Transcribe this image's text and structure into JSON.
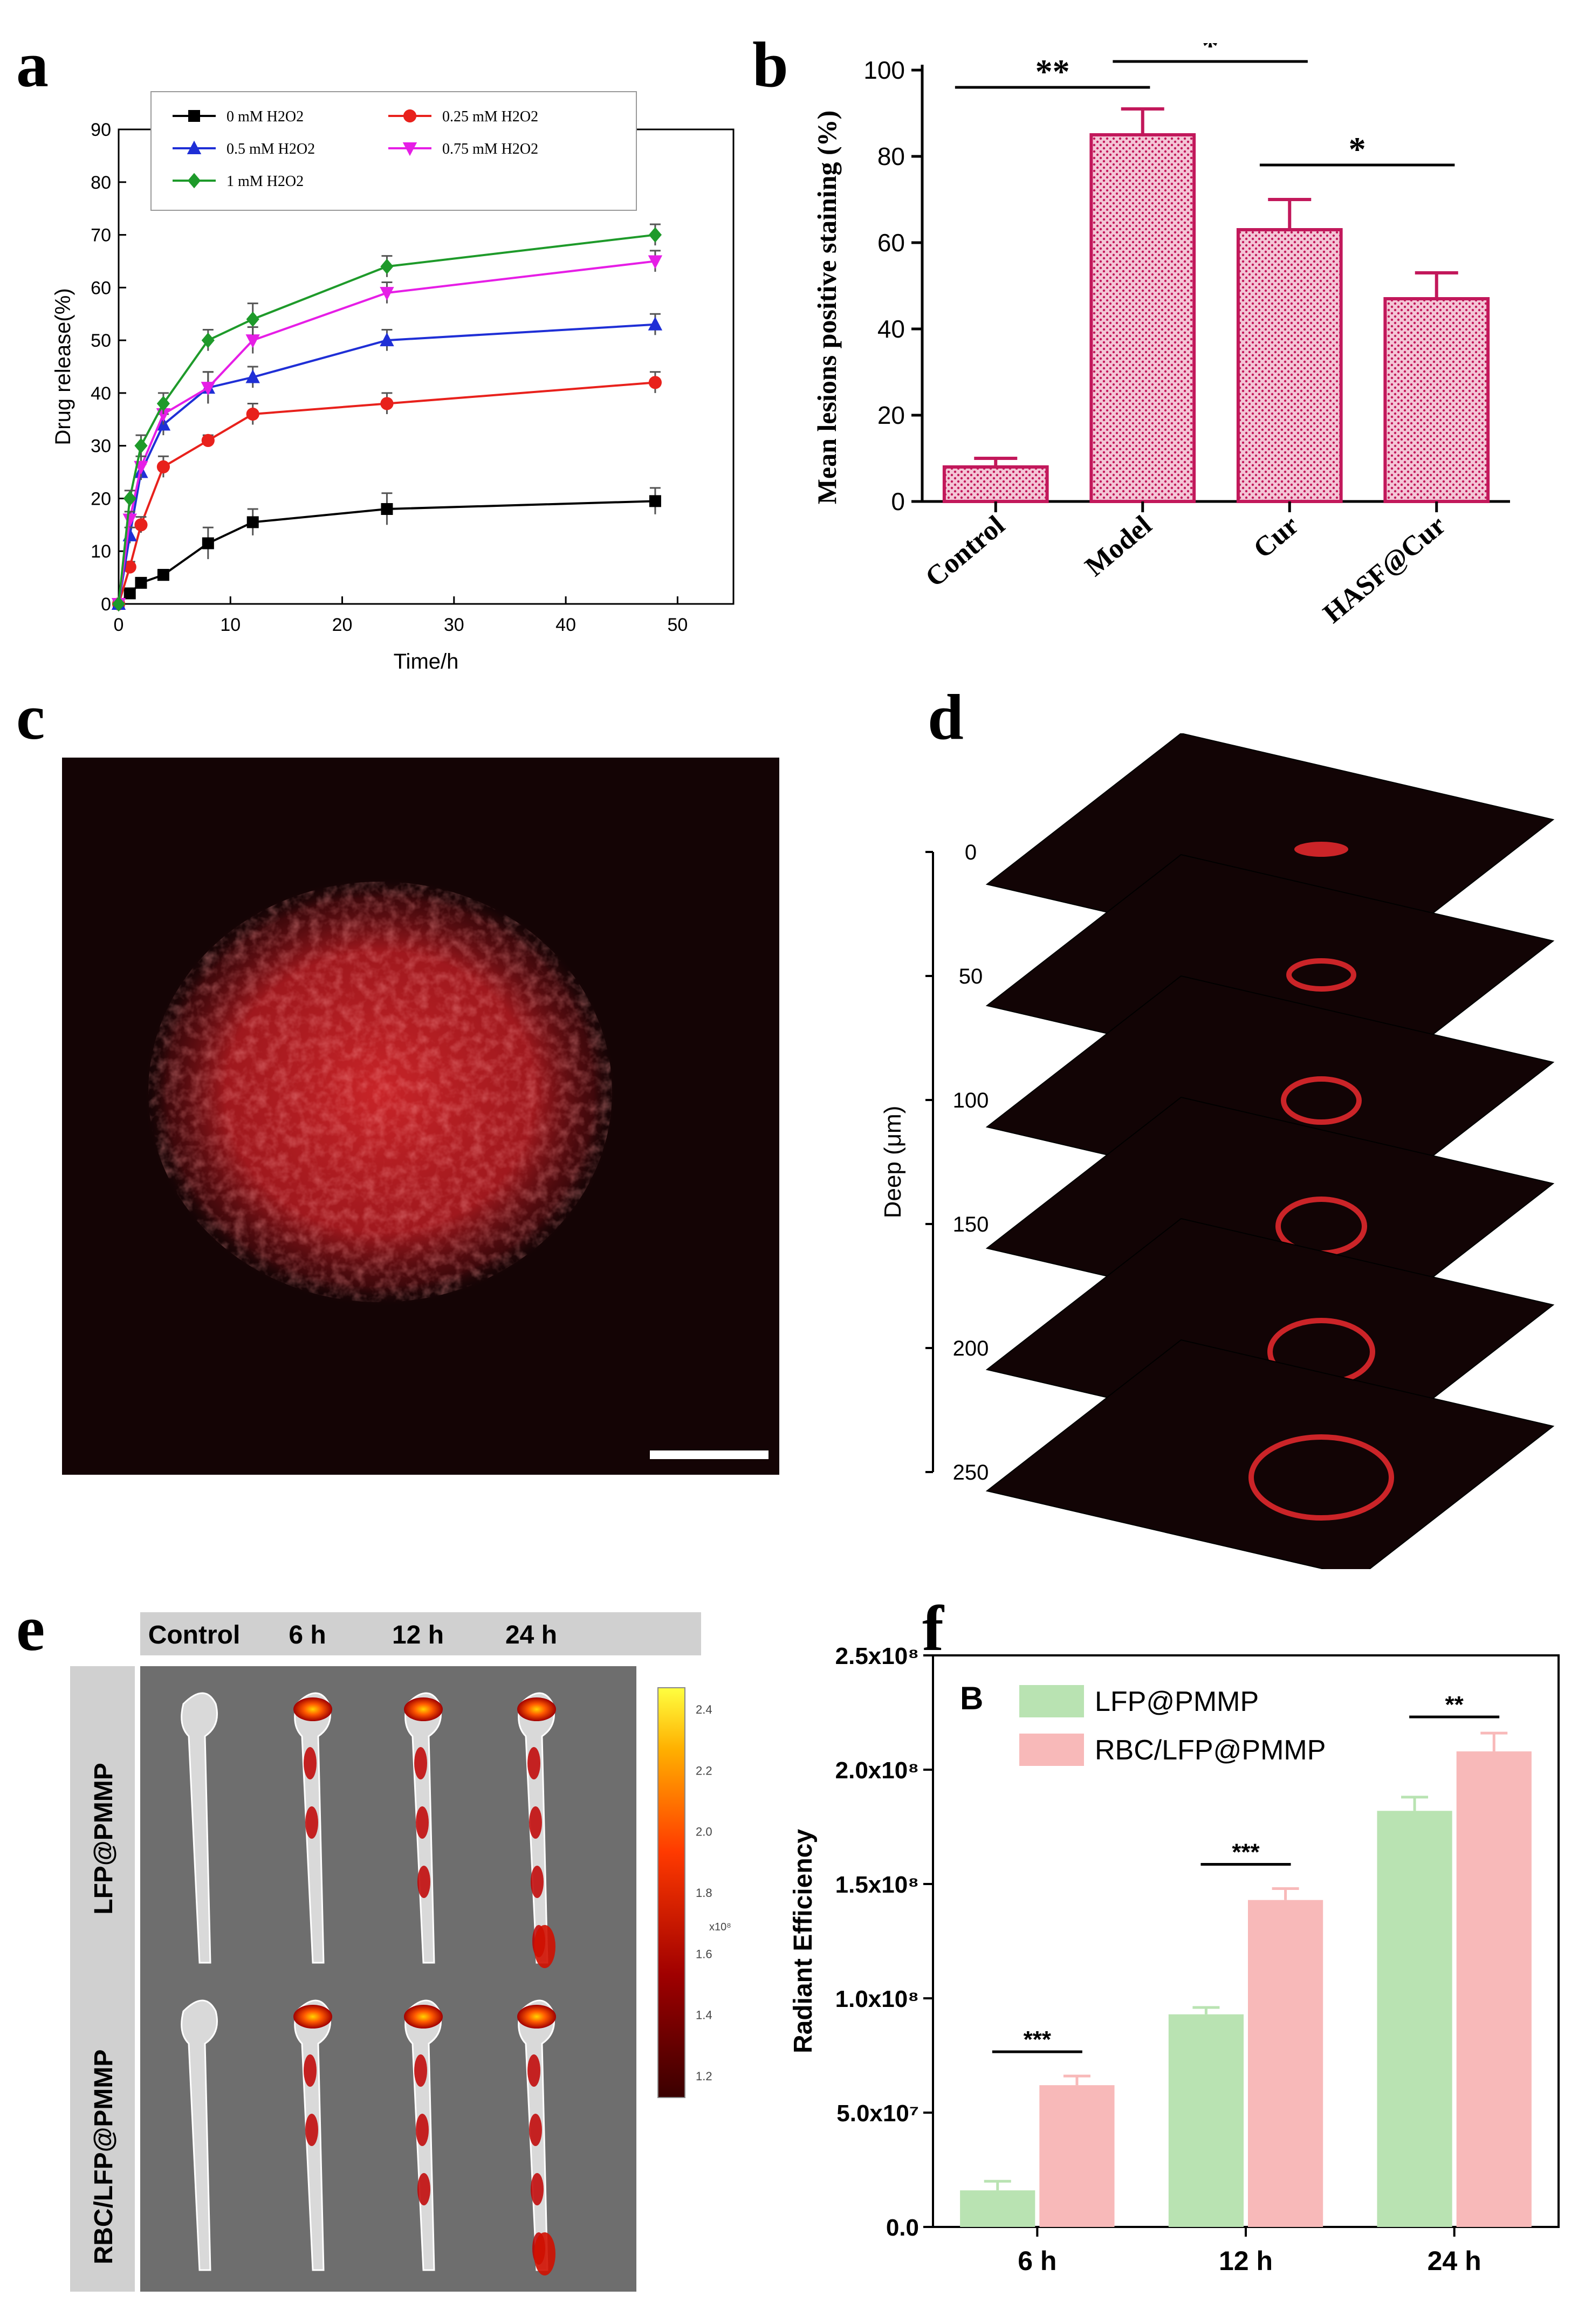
{
  "panel_labels": {
    "a": "a",
    "b": "b",
    "c": "c",
    "d": "d",
    "e": "e",
    "f": "f"
  },
  "chart_data": [
    {
      "panel": "a",
      "type": "line",
      "xlabel": "Time/h",
      "ylabel": "Drug release(%)",
      "xlim": [
        0,
        55
      ],
      "ylim": [
        0,
        90
      ],
      "xticks": [
        "0",
        "10",
        "20",
        "30",
        "40",
        "50"
      ],
      "yticks": [
        "0",
        "10",
        "20",
        "30",
        "40",
        "50",
        "60",
        "70",
        "80",
        "90"
      ],
      "x": [
        0,
        1,
        2,
        4,
        8,
        12,
        24,
        48
      ],
      "legend_position": "top",
      "series": [
        {
          "name": "0 mM H2O2",
          "color": "#000000",
          "marker": "square",
          "values": [
            0,
            2,
            4,
            5.5,
            11.5,
            15.5,
            18,
            19.5
          ],
          "errors": [
            0,
            0.5,
            0.8,
            1,
            3,
            2.5,
            3,
            2.5
          ]
        },
        {
          "name": "0.25 mM H2O2",
          "color": "#e8211c",
          "marker": "circle",
          "values": [
            0,
            7,
            15,
            26,
            31,
            36,
            38,
            42
          ],
          "errors": [
            0,
            1,
            1.5,
            2,
            1,
            2,
            2,
            2
          ]
        },
        {
          "name": "0.5 mM H2O2",
          "color": "#1f2fd6",
          "marker": "triangle-up",
          "values": [
            0,
            13,
            25,
            34,
            41,
            43,
            50,
            53
          ],
          "errors": [
            0,
            1.5,
            1.5,
            2,
            3,
            2,
            2,
            2
          ]
        },
        {
          "name": "0.75 mM H2O2",
          "color": "#e61ee6",
          "marker": "triangle-down",
          "values": [
            0,
            16,
            26,
            36,
            41,
            50,
            59,
            65
          ],
          "errors": [
            0,
            1.5,
            2,
            2,
            3,
            2.5,
            2,
            2
          ]
        },
        {
          "name": "1 mM H2O2",
          "color": "#1e9a2a",
          "marker": "diamond",
          "values": [
            0,
            20,
            30,
            38,
            50,
            54,
            64,
            70
          ],
          "errors": [
            0,
            1.5,
            2,
            2,
            2,
            3,
            2,
            2
          ]
        }
      ]
    },
    {
      "panel": "b",
      "type": "bar",
      "ylabel": "Mean lesions positive staining (%)",
      "ylim": [
        0,
        100
      ],
      "yticks": [
        "0",
        "20",
        "40",
        "60",
        "80",
        "100"
      ],
      "categories": [
        "Control",
        "Model",
        "Cur",
        "HASF@Cur"
      ],
      "values": [
        8,
        85,
        63,
        47
      ],
      "errors": [
        2,
        6,
        7,
        6
      ],
      "color": "#c2185b",
      "significance": [
        {
          "from": 0,
          "to": 1,
          "label": "**",
          "level": 96
        },
        {
          "from": 1,
          "to": 2,
          "label": "*",
          "level": 102
        },
        {
          "from": 2,
          "to": 3,
          "label": "*",
          "level": 78
        }
      ]
    },
    {
      "panel": "f",
      "type": "bar",
      "ylabel": "Radiant Efficiency",
      "ylim": [
        0,
        250000000
      ],
      "yticks": [
        "0.0",
        "5.0x10⁷",
        "1.0x10⁸",
        "1.5x10⁸",
        "2.0x10⁸",
        "2.5x10⁸"
      ],
      "categories": [
        "6 h",
        "12 h",
        "24 h"
      ],
      "legend_position": "top-left",
      "panel_tag": "B",
      "series": [
        {
          "name": "LFP@PMMP",
          "color": "#b9e3b2",
          "values": [
            16000000,
            93000000,
            182000000
          ],
          "errors": [
            4000000,
            3000000,
            6000000
          ]
        },
        {
          "name": "RBC/LFP@PMMP",
          "color": "#f8b9b9",
          "values": [
            62000000,
            143000000,
            208000000
          ],
          "errors": [
            4000000,
            5000000,
            8000000
          ]
        }
      ],
      "significance": [
        {
          "category": 0,
          "label": "***"
        },
        {
          "category": 1,
          "label": "***"
        },
        {
          "category": 2,
          "label": "**"
        }
      ]
    }
  ],
  "panel_d": {
    "axis_label": "Deep (μm)",
    "ticks": [
      "0",
      "50",
      "100",
      "150",
      "200",
      "250"
    ]
  },
  "panel_e": {
    "columns": [
      "Control",
      "6 h",
      "12 h",
      "24 h"
    ],
    "rows": [
      "LFP@PMMP",
      "RBC/LFP@PMMP"
    ],
    "colorbar_ticks": [
      "2.4",
      "2.2",
      "2.0",
      "1.8",
      "1.6",
      "1.4",
      "1.2"
    ],
    "colorbar_unit": "x10⁸"
  },
  "colors": {
    "image_bg": "#120405",
    "fluor": "#e0282c"
  }
}
